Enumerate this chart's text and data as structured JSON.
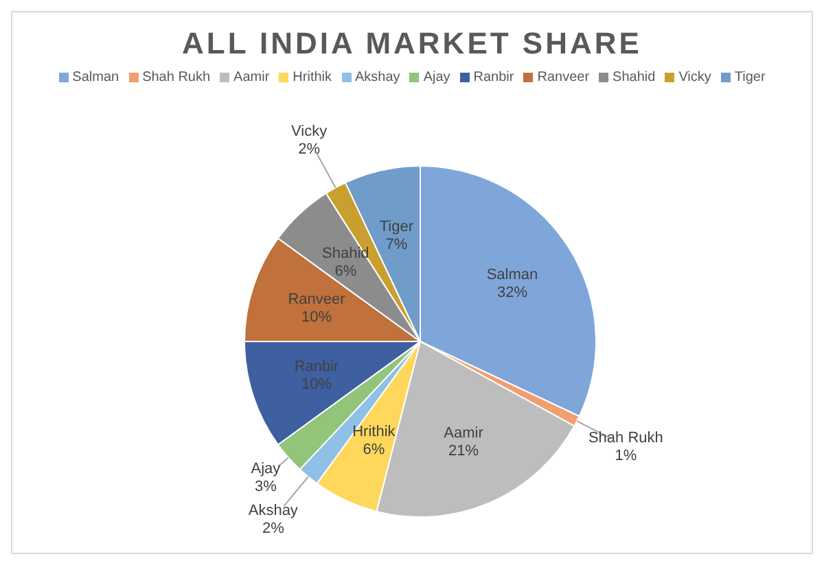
{
  "chart_data": {
    "type": "pie",
    "title": "ALL INDIA MARKET SHARE",
    "categories": [
      "Salman",
      "Shah Rukh",
      "Aamir",
      "Hrithik",
      "Akshay",
      "Ajay",
      "Ranbir",
      "Ranveer",
      "Shahid",
      "Vicky",
      "Tiger"
    ],
    "values": [
      32,
      1,
      21,
      6,
      2,
      3,
      10,
      10,
      6,
      2,
      7
    ],
    "value_labels": [
      "32%",
      "1%",
      "21%",
      "6%",
      "2%",
      "3%",
      "10%",
      "10%",
      "6%",
      "2%",
      "7%"
    ],
    "colors": [
      "#7fa6d9",
      "#f0a070",
      "#bdbdbd",
      "#ffd75a",
      "#8fc0e6",
      "#92c47a",
      "#3e5fa0",
      "#c0713c",
      "#8c8c8c",
      "#c9a030",
      "#6f9cc9"
    ],
    "legend": "top"
  }
}
